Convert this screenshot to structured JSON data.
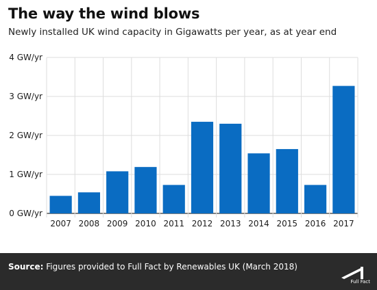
{
  "title": "The way the wind blows",
  "subtitle": "Newly installed UK wind capacity in Gigawatts per year, as at year end",
  "footer": {
    "source_label": "Source:",
    "source_text": "Figures provided to Full Fact by Renewables UK (March 2018)",
    "logo_text": "Full Fact"
  },
  "colors": {
    "bar": "#0a6cc2",
    "grid": "#dddddd",
    "axis": "#333333",
    "footer_bg": "#2b2b2b"
  },
  "chart_data": {
    "type": "bar",
    "categories": [
      "2007",
      "2008",
      "2009",
      "2010",
      "2011",
      "2012",
      "2013",
      "2014",
      "2015",
      "2016",
      "2017"
    ],
    "values": [
      0.45,
      0.54,
      1.08,
      1.19,
      0.73,
      2.35,
      2.3,
      1.54,
      1.65,
      0.73,
      3.27
    ],
    "ylim": [
      0,
      4
    ],
    "yticks": [
      0,
      1,
      2,
      3,
      4
    ],
    "ytick_labels": [
      "0 GW/yr",
      "1 GW/yr",
      "2 GW/yr",
      "3 GW/yr",
      "4 GW/yr"
    ],
    "grid": true
  }
}
